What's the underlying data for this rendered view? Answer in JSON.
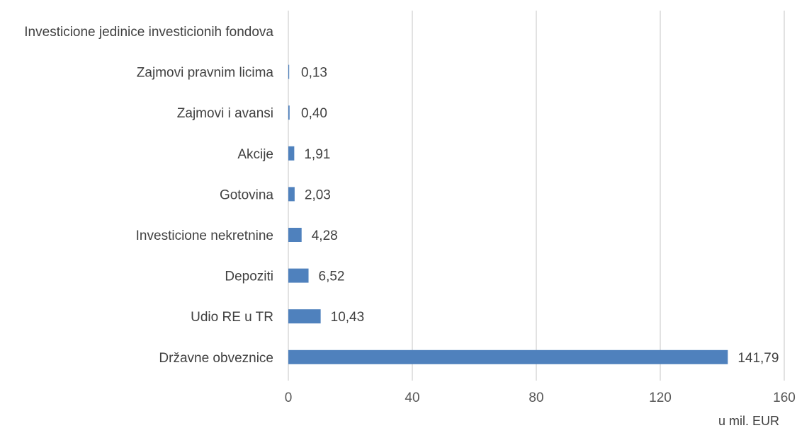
{
  "chart_data": {
    "type": "bar",
    "orientation": "horizontal",
    "categories": [
      "Investicione jedinice investicionih fondova",
      "Zajmovi pravnim licima",
      "Zajmovi i avansi",
      "Akcije",
      "Gotovina",
      "Investicione nekretnine",
      "Depoziti",
      "Udio RE u TR",
      "Državne obveznice"
    ],
    "values": [
      null,
      0.13,
      0.4,
      1.91,
      2.03,
      4.28,
      6.52,
      10.43,
      141.79
    ],
    "value_labels": [
      "",
      "0,13",
      "0,40",
      "1,91",
      "2,03",
      "4,28",
      "6,52",
      "10,43",
      "141,79"
    ],
    "xlim": [
      0,
      160
    ],
    "x_ticks": [
      0,
      40,
      80,
      120,
      160
    ],
    "unit_label": "u mil. EUR",
    "bar_color": "#4f81bd",
    "grid": true
  }
}
